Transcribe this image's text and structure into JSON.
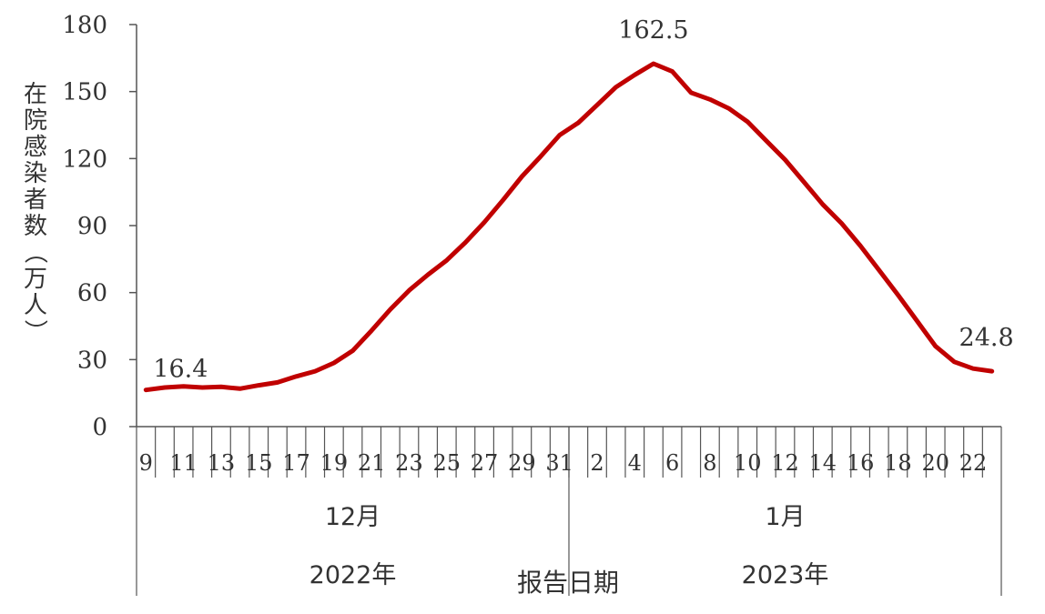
{
  "chart_data": {
    "type": "line",
    "ylabel": "在院感染者数（万人）",
    "xlabel": "报告日期",
    "ylim": [
      0,
      180
    ],
    "yticks": [
      0,
      30,
      60,
      90,
      120,
      150,
      180
    ],
    "grid": false,
    "line_color": "#c00000",
    "x": [
      "2022-12-09",
      "2022-12-10",
      "2022-12-11",
      "2022-12-12",
      "2022-12-13",
      "2022-12-14",
      "2022-12-15",
      "2022-12-16",
      "2022-12-17",
      "2022-12-18",
      "2022-12-19",
      "2022-12-20",
      "2022-12-21",
      "2022-12-22",
      "2022-12-23",
      "2022-12-24",
      "2022-12-25",
      "2022-12-26",
      "2022-12-27",
      "2022-12-28",
      "2022-12-29",
      "2022-12-30",
      "2022-12-31",
      "2023-01-01",
      "2023-01-02",
      "2023-01-03",
      "2023-01-04",
      "2023-01-05",
      "2023-01-06",
      "2023-01-07",
      "2023-01-08",
      "2023-01-09",
      "2023-01-10",
      "2023-01-11",
      "2023-01-12",
      "2023-01-13",
      "2023-01-14",
      "2023-01-15",
      "2023-01-16",
      "2023-01-17",
      "2023-01-18",
      "2023-01-19",
      "2023-01-20",
      "2023-01-21",
      "2023-01-22",
      "2023-01-23"
    ],
    "values": [
      16.4,
      17.5,
      18.0,
      17.5,
      17.8,
      17.0,
      18.5,
      19.8,
      22.5,
      24.8,
      28.5,
      34.0,
      43.0,
      52.5,
      61.0,
      68.0,
      74.5,
      82.5,
      91.5,
      101.5,
      112.0,
      121.0,
      130.5,
      136.0,
      144.0,
      152.0,
      157.5,
      162.5,
      159.0,
      149.5,
      146.5,
      142.5,
      136.5,
      128.0,
      119.5,
      109.5,
      99.5,
      91.0,
      81.0,
      70.0,
      59.0,
      47.5,
      36.0,
      29.0,
      26.0,
      24.8
    ],
    "tick_labels": [
      {
        "index": 0,
        "text": "9"
      },
      {
        "index": 2,
        "text": "11"
      },
      {
        "index": 4,
        "text": "13"
      },
      {
        "index": 6,
        "text": "15"
      },
      {
        "index": 8,
        "text": "17"
      },
      {
        "index": 10,
        "text": "19"
      },
      {
        "index": 12,
        "text": "21"
      },
      {
        "index": 14,
        "text": "23"
      },
      {
        "index": 16,
        "text": "25"
      },
      {
        "index": 18,
        "text": "27"
      },
      {
        "index": 20,
        "text": "29"
      },
      {
        "index": 22,
        "text": "31"
      },
      {
        "index": 24,
        "text": "2"
      },
      {
        "index": 26,
        "text": "4"
      },
      {
        "index": 28,
        "text": "6"
      },
      {
        "index": 30,
        "text": "8"
      },
      {
        "index": 32,
        "text": "10"
      },
      {
        "index": 34,
        "text": "12"
      },
      {
        "index": 36,
        "text": "14"
      },
      {
        "index": 38,
        "text": "16"
      },
      {
        "index": 40,
        "text": "18"
      },
      {
        "index": 42,
        "text": "20"
      },
      {
        "index": 44,
        "text": "22"
      }
    ],
    "month_groups": [
      {
        "label": "12月",
        "start": 0,
        "end": 22
      },
      {
        "label": "1月",
        "start": 23,
        "end": 45
      }
    ],
    "year_groups": [
      {
        "label": "2022年",
        "start": 0,
        "end": 22
      },
      {
        "label": "2023年",
        "start": 23,
        "end": 45
      }
    ],
    "annotations": [
      {
        "index": 0,
        "text": "16.4"
      },
      {
        "index": 27,
        "text": "162.5"
      },
      {
        "index": 45,
        "text": "24.8"
      }
    ]
  }
}
